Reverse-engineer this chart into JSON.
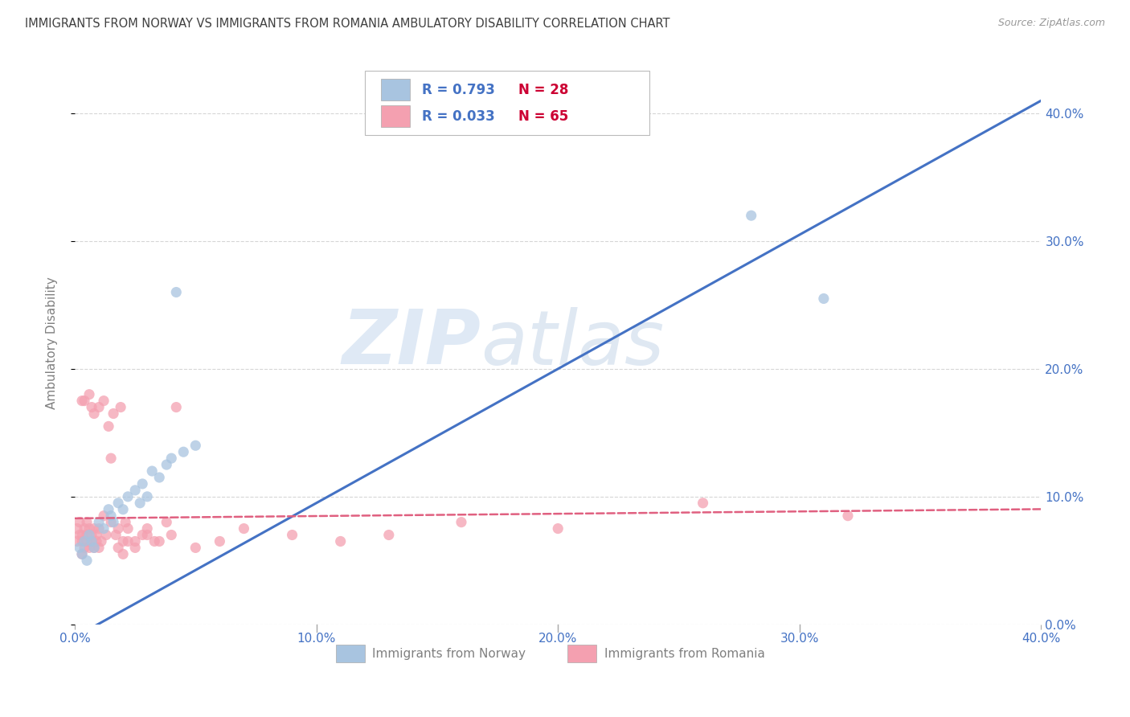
{
  "title": "IMMIGRANTS FROM NORWAY VS IMMIGRANTS FROM ROMANIA AMBULATORY DISABILITY CORRELATION CHART",
  "source": "Source: ZipAtlas.com",
  "ylabel": "Ambulatory Disability",
  "xlim": [
    0.0,
    0.4
  ],
  "ylim": [
    0.0,
    0.44
  ],
  "norway_R": 0.793,
  "norway_N": 28,
  "romania_R": 0.033,
  "romania_N": 65,
  "norway_color": "#a8c4e0",
  "romania_color": "#f4a0b0",
  "norway_line_color": "#4472c4",
  "romania_line_color": "#e06080",
  "norway_scatter_x": [
    0.002,
    0.003,
    0.004,
    0.005,
    0.006,
    0.007,
    0.008,
    0.01,
    0.012,
    0.014,
    0.015,
    0.016,
    0.018,
    0.02,
    0.022,
    0.025,
    0.027,
    0.028,
    0.03,
    0.032,
    0.035,
    0.038,
    0.04,
    0.042,
    0.045,
    0.05,
    0.28,
    0.31
  ],
  "norway_scatter_y": [
    0.06,
    0.055,
    0.065,
    0.05,
    0.07,
    0.065,
    0.06,
    0.08,
    0.075,
    0.09,
    0.085,
    0.08,
    0.095,
    0.09,
    0.1,
    0.105,
    0.095,
    0.11,
    0.1,
    0.12,
    0.115,
    0.125,
    0.13,
    0.26,
    0.135,
    0.14,
    0.32,
    0.255
  ],
  "romania_scatter_x": [
    0.001,
    0.001,
    0.002,
    0.002,
    0.003,
    0.003,
    0.003,
    0.004,
    0.004,
    0.005,
    0.005,
    0.005,
    0.006,
    0.006,
    0.007,
    0.007,
    0.008,
    0.008,
    0.009,
    0.009,
    0.01,
    0.01,
    0.011,
    0.012,
    0.013,
    0.014,
    0.015,
    0.016,
    0.017,
    0.018,
    0.019,
    0.02,
    0.021,
    0.022,
    0.025,
    0.028,
    0.03,
    0.033,
    0.038,
    0.042,
    0.003,
    0.004,
    0.006,
    0.007,
    0.008,
    0.01,
    0.012,
    0.015,
    0.018,
    0.02,
    0.022,
    0.025,
    0.03,
    0.035,
    0.04,
    0.05,
    0.06,
    0.07,
    0.09,
    0.11,
    0.13,
    0.16,
    0.2,
    0.26,
    0.32
  ],
  "romania_scatter_y": [
    0.075,
    0.065,
    0.07,
    0.08,
    0.055,
    0.07,
    0.065,
    0.06,
    0.075,
    0.065,
    0.07,
    0.08,
    0.06,
    0.075,
    0.065,
    0.07,
    0.06,
    0.075,
    0.065,
    0.07,
    0.06,
    0.075,
    0.065,
    0.085,
    0.07,
    0.155,
    0.08,
    0.165,
    0.07,
    0.075,
    0.17,
    0.065,
    0.08,
    0.075,
    0.065,
    0.07,
    0.075,
    0.065,
    0.08,
    0.17,
    0.175,
    0.175,
    0.18,
    0.17,
    0.165,
    0.17,
    0.175,
    0.13,
    0.06,
    0.055,
    0.065,
    0.06,
    0.07,
    0.065,
    0.07,
    0.06,
    0.065,
    0.075,
    0.07,
    0.065,
    0.07,
    0.08,
    0.075,
    0.095,
    0.085
  ],
  "watermark_zip": "ZIP",
  "watermark_atlas": "atlas",
  "background_color": "#ffffff",
  "grid_color": "#cccccc",
  "title_color": "#404040",
  "axis_label_color": "#808080",
  "tick_label_color": "#4472c4",
  "legend_R_color": "#4472c4",
  "legend_N_color": "#cc0033"
}
